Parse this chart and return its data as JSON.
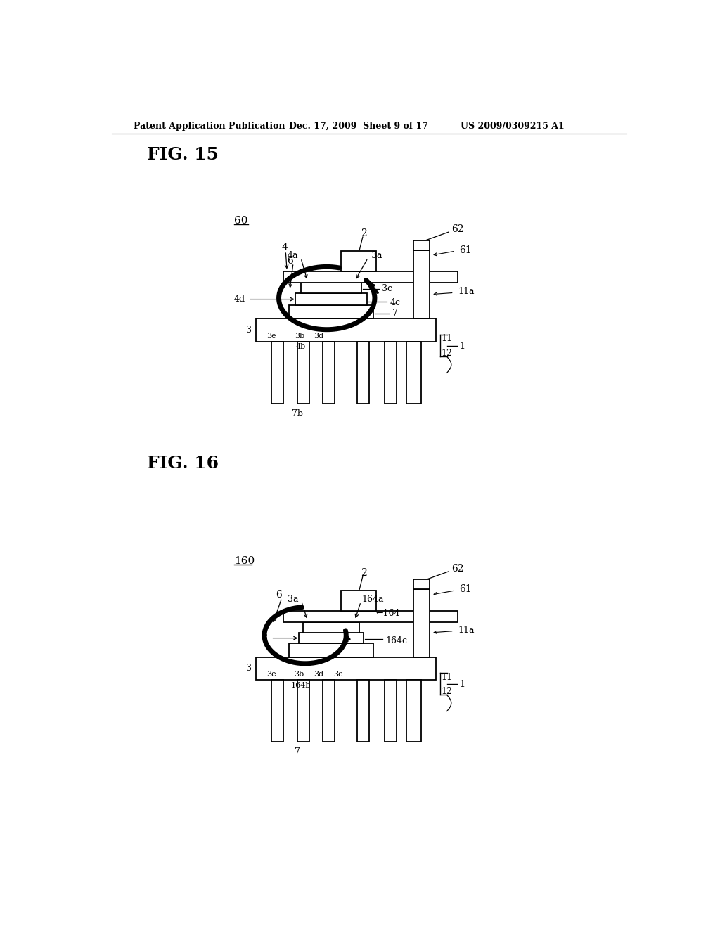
{
  "bg_color": "#ffffff",
  "header_left": "Patent Application Publication",
  "header_center": "Dec. 17, 2009  Sheet 9 of 17",
  "header_right": "US 2009/0309215 A1",
  "fig15_label": "FIG. 15",
  "fig16_label": "FIG. 16",
  "line_color": "#000000",
  "lw_thin": 1.3,
  "lw_thick": 5.0,
  "fs_label": 10,
  "fs_title": 18,
  "fs_header": 9
}
